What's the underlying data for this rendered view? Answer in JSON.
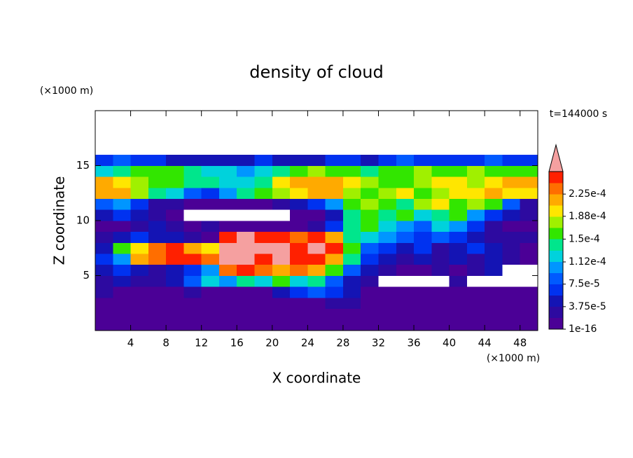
{
  "chart_data": {
    "type": "contour",
    "title": "density of cloud",
    "x_label": "X coordinate",
    "y_label": "Z coordinate",
    "x_unit": "(×1000 m)",
    "y_unit": "(×1000 m)",
    "annotation": "t=144000 s",
    "xlim": [
      0,
      50
    ],
    "ylim": [
      0,
      20
    ],
    "xticks": [
      4,
      8,
      12,
      16,
      20,
      24,
      28,
      32,
      36,
      40,
      44,
      48
    ],
    "yticks": [
      5,
      10,
      15
    ],
    "xbins": [
      0,
      2,
      4,
      6,
      8,
      10,
      12,
      14,
      16,
      18,
      20,
      22,
      24,
      26,
      28,
      30,
      32,
      34,
      36,
      38,
      40,
      42,
      44,
      46,
      48,
      50
    ],
    "ybins": [
      0,
      1,
      2,
      3,
      4,
      5,
      6,
      7,
      8,
      9,
      10,
      11,
      12,
      13,
      14,
      15,
      16
    ],
    "z": [
      [
        1e-05,
        1e-05,
        1e-05,
        1e-05,
        1e-05,
        1e-05,
        1e-05,
        1e-05,
        1e-05,
        1e-05,
        1e-05,
        1e-05,
        1e-05,
        1e-05,
        1e-05,
        1e-05,
        1e-05,
        1e-05,
        1e-05,
        1e-05,
        1e-05,
        1e-05,
        1e-05,
        1e-05,
        1e-05
      ],
      [
        1e-05,
        1e-05,
        1e-05,
        1e-05,
        1e-05,
        1e-05,
        1e-05,
        1e-05,
        1e-05,
        1e-05,
        1e-05,
        1e-05,
        1e-05,
        1e-05,
        1e-05,
        1e-05,
        1e-05,
        1e-05,
        1e-05,
        1e-05,
        1e-05,
        1e-05,
        1e-05,
        1e-05,
        1e-05
      ],
      [
        1e-05,
        1e-05,
        1e-05,
        1e-05,
        1e-05,
        1e-05,
        1e-05,
        1e-05,
        1e-05,
        1e-05,
        1e-05,
        1e-05,
        1e-05,
        2.5e-05,
        2.5e-05,
        1e-05,
        1e-05,
        1e-05,
        1e-05,
        1e-05,
        1e-05,
        1e-05,
        1e-05,
        1e-05,
        1e-05
      ],
      [
        2.5e-05,
        1e-05,
        1e-05,
        1e-05,
        1e-05,
        2.5e-05,
        1e-05,
        1e-05,
        1e-05,
        1e-05,
        4e-05,
        6e-05,
        8e-05,
        6e-05,
        4e-05,
        1e-05,
        1e-05,
        1e-05,
        1e-05,
        1e-05,
        1e-05,
        1e-05,
        1e-05,
        1e-05,
        1e-05
      ],
      [
        2.5e-05,
        4e-05,
        2.5e-05,
        2.5e-05,
        4e-05,
        8e-05,
        0.00012,
        0.0001,
        0.000135,
        0.00012,
        0.00016,
        0.00012,
        0.000135,
        8e-05,
        4e-05,
        2.5e-05,
        0,
        0,
        0,
        0,
        2.5e-05,
        0,
        0,
        0,
        0
      ],
      [
        4e-05,
        6e-05,
        4e-05,
        2.5e-05,
        4e-05,
        6e-05,
        0.0001,
        0.00023,
        0.00025,
        0.00023,
        0.00021,
        0.00023,
        0.00021,
        0.00016,
        8e-05,
        4e-05,
        2.5e-05,
        1e-05,
        1e-05,
        2.5e-05,
        1e-05,
        2.5e-05,
        4e-05,
        0,
        0
      ],
      [
        6e-05,
        0.0001,
        0.00021,
        0.00023,
        0.00025,
        0.00025,
        0.00023,
        0.00028,
        0.00028,
        0.00025,
        0.00028,
        0.00025,
        0.00025,
        0.00021,
        0.000135,
        6e-05,
        4e-05,
        2.5e-05,
        4e-05,
        2.5e-05,
        4e-05,
        2.5e-05,
        4e-05,
        2.5e-05,
        1e-05
      ],
      [
        4e-05,
        0.00016,
        0.000195,
        0.00023,
        0.00025,
        0.00021,
        0.000195,
        0.00028,
        0.00028,
        0.00028,
        0.00028,
        0.00025,
        0.00028,
        0.00025,
        0.00016,
        8e-05,
        6e-05,
        4e-05,
        6e-05,
        2.5e-05,
        4e-05,
        6e-05,
        4e-05,
        2.5e-05,
        1e-05
      ],
      [
        2.5e-05,
        4e-05,
        6e-05,
        4e-05,
        4e-05,
        2.5e-05,
        1e-05,
        0.00025,
        0.00028,
        0.00025,
        0.00025,
        0.00023,
        0.00025,
        0.00021,
        0.000135,
        0.00012,
        0.0001,
        8e-05,
        6e-05,
        8e-05,
        6e-05,
        4e-05,
        2.5e-05,
        2.5e-05,
        2.5e-05
      ],
      [
        1e-05,
        1e-05,
        2.5e-05,
        4e-05,
        2.5e-05,
        1e-05,
        2.5e-05,
        1e-05,
        1e-05,
        1e-05,
        1e-05,
        1e-05,
        2.5e-05,
        6e-05,
        0.000135,
        0.00016,
        0.00012,
        0.0001,
        8e-05,
        0.00012,
        0.0001,
        6e-05,
        2.5e-05,
        1e-05,
        1e-05
      ],
      [
        4e-05,
        6e-05,
        4e-05,
        2.5e-05,
        1e-05,
        0,
        0,
        0,
        0,
        0,
        0,
        1e-05,
        1e-05,
        4e-05,
        0.000135,
        0.00016,
        0.000135,
        0.00016,
        0.00012,
        0.000135,
        0.00016,
        0.0001,
        6e-05,
        4e-05,
        2.5e-05
      ],
      [
        8e-05,
        0.0001,
        6e-05,
        2.5e-05,
        2.5e-05,
        1e-05,
        1e-05,
        1e-05,
        1e-05,
        1e-05,
        2.5e-05,
        4e-05,
        6e-05,
        0.0001,
        0.00016,
        0.000175,
        0.00016,
        0.000135,
        0.000175,
        0.000195,
        0.00016,
        0.000175,
        0.00016,
        8e-05,
        2.5e-05
      ],
      [
        0.00021,
        0.00021,
        0.000175,
        0.000135,
        0.00012,
        8e-05,
        6e-05,
        0.0001,
        0.000135,
        0.00016,
        0.000175,
        0.000195,
        0.00021,
        0.00021,
        0.000175,
        0.00016,
        0.000175,
        0.000195,
        0.00016,
        0.000175,
        0.000195,
        0.000195,
        0.00021,
        0.000195,
        0.000195
      ],
      [
        0.00021,
        0.000195,
        0.000175,
        0.00016,
        0.00016,
        0.000135,
        0.000135,
        0.00012,
        0.00012,
        0.000135,
        0.000195,
        0.00021,
        0.00021,
        0.00021,
        0.000195,
        0.000175,
        0.00016,
        0.00016,
        0.000175,
        0.000195,
        0.000195,
        0.000175,
        0.000195,
        0.00021,
        0.00021
      ],
      [
        0.00012,
        0.000135,
        0.00016,
        0.00016,
        0.00016,
        0.000135,
        0.00012,
        0.00012,
        0.0001,
        0.00012,
        0.000135,
        0.00016,
        0.000175,
        0.00016,
        0.00016,
        0.000135,
        0.00016,
        0.00016,
        0.000175,
        0.00016,
        0.00016,
        0.000175,
        0.00016,
        0.00016,
        0.00016
      ],
      [
        6e-05,
        8e-05,
        6e-05,
        6e-05,
        4e-05,
        4e-05,
        4e-05,
        4e-05,
        4e-05,
        6e-05,
        4e-05,
        4e-05,
        4e-05,
        6e-05,
        6e-05,
        4e-05,
        6e-05,
        8e-05,
        6e-05,
        6e-05,
        6e-05,
        6e-05,
        8e-05,
        6e-05,
        6e-05
      ]
    ],
    "colorbar": {
      "levels": [
        1e-16,
        1.875e-05,
        3.75e-05,
        5.625e-05,
        7.5e-05,
        9.375e-05,
        0.0001125,
        0.00013125,
        0.00015,
        0.00016875,
        0.0001875,
        0.00020625,
        0.000225,
        0.00024375,
        0.0002625
      ],
      "colors": [
        "#4b0096",
        "#2d0aa0",
        "#1414b4",
        "#0032f0",
        "#005aff",
        "#0096ff",
        "#00d2dc",
        "#00e68c",
        "#32e600",
        "#a0f000",
        "#ffe600",
        "#ffaa00",
        "#ff6e00",
        "#ff2000"
      ],
      "extend_color": "#f5a0a0",
      "ticks": [
        {
          "value": 1e-16,
          "label": "1e-16"
        },
        {
          "value": 3.75e-05,
          "label": "3.75e-5"
        },
        {
          "value": 7.5e-05,
          "label": "7.5e-5"
        },
        {
          "value": 0.000112,
          "label": "1.12e-4"
        },
        {
          "value": 0.00015,
          "label": "1.5e-4"
        },
        {
          "value": 0.000188,
          "label": "1.88e-4"
        },
        {
          "value": 0.000225,
          "label": "2.25e-4"
        }
      ]
    }
  }
}
